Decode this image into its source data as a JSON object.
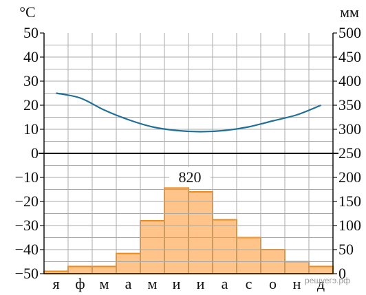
{
  "chart_data": {
    "type": "climatogram",
    "left_unit": "°C",
    "right_unit": "мм",
    "left_axis": {
      "min": -50,
      "max": 50,
      "ticks": [
        50,
        40,
        30,
        20,
        10,
        0,
        -10,
        -20,
        -30,
        -40,
        -50
      ],
      "tick_labels": [
        "50",
        "40",
        "30",
        "20",
        "10",
        "0",
        "−10",
        "−20",
        "−30",
        "−40",
        "−50"
      ]
    },
    "right_axis": {
      "min": 0,
      "max": 500,
      "ticks": [
        500,
        450,
        400,
        350,
        300,
        250,
        200,
        150,
        100,
        50,
        0
      ],
      "tick_labels": [
        "500",
        "450",
        "400",
        "350",
        "300",
        "250",
        "200",
        "150",
        "100",
        "50",
        "0"
      ]
    },
    "categories": [
      "я",
      "ф",
      "м",
      "а",
      "м",
      "и",
      "и",
      "а",
      "с",
      "о",
      "н",
      "д"
    ],
    "series": [
      {
        "kind": "line",
        "axis": "left",
        "color": "#1f6f96",
        "values": [
          25,
          23,
          18,
          14,
          11,
          9.5,
          9,
          9.5,
          11,
          13.5,
          16,
          20
        ]
      },
      {
        "kind": "bar",
        "axis": "right",
        "color": "#ffc48a",
        "edge": "#f08a16",
        "values": [
          5,
          15,
          15,
          42,
          110,
          178,
          170,
          112,
          75,
          50,
          25,
          15
        ]
      }
    ],
    "annotations": [
      {
        "text": "820"
      }
    ],
    "grid": true,
    "watermark": "решуегэ.рф"
  }
}
